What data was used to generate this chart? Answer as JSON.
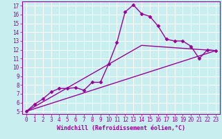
{
  "background_color": "#c8eef0",
  "line_color": "#990099",
  "grid_color": "#ffffff",
  "xlabel": "Windchill (Refroidissement éolien,°C)",
  "xticks": [
    0,
    1,
    2,
    3,
    4,
    5,
    6,
    7,
    8,
    9,
    10,
    11,
    12,
    13,
    14,
    15,
    16,
    17,
    18,
    19,
    20,
    21,
    22,
    23
  ],
  "yticks": [
    5,
    6,
    7,
    8,
    9,
    10,
    11,
    12,
    13,
    14,
    15,
    16,
    17
  ],
  "xlim": [
    -0.5,
    23.5
  ],
  "ylim": [
    4.7,
    17.5
  ],
  "line1_x": [
    0,
    1,
    2,
    3,
    4,
    5,
    6,
    7,
    8,
    9,
    10,
    11,
    12,
    13,
    14,
    15,
    16,
    17,
    18,
    19,
    20,
    21,
    22,
    23
  ],
  "line1_y": [
    5.0,
    5.8,
    6.4,
    7.2,
    7.6,
    7.6,
    7.7,
    7.4,
    8.3,
    8.3,
    10.4,
    12.8,
    16.3,
    17.1,
    16.1,
    15.8,
    14.7,
    13.2,
    13.0,
    13.0,
    12.4,
    11.0,
    12.0,
    11.9
  ],
  "line2_x": [
    0,
    23
  ],
  "line2_y": [
    5.0,
    11.9
  ],
  "line3_x": [
    0,
    14,
    23
  ],
  "line3_y": [
    5.0,
    12.5,
    11.9
  ],
  "marker": "D",
  "markersize": 2.5,
  "linewidth": 1.0,
  "tick_fontsize": 5.5,
  "xlabel_fontsize": 6.0
}
